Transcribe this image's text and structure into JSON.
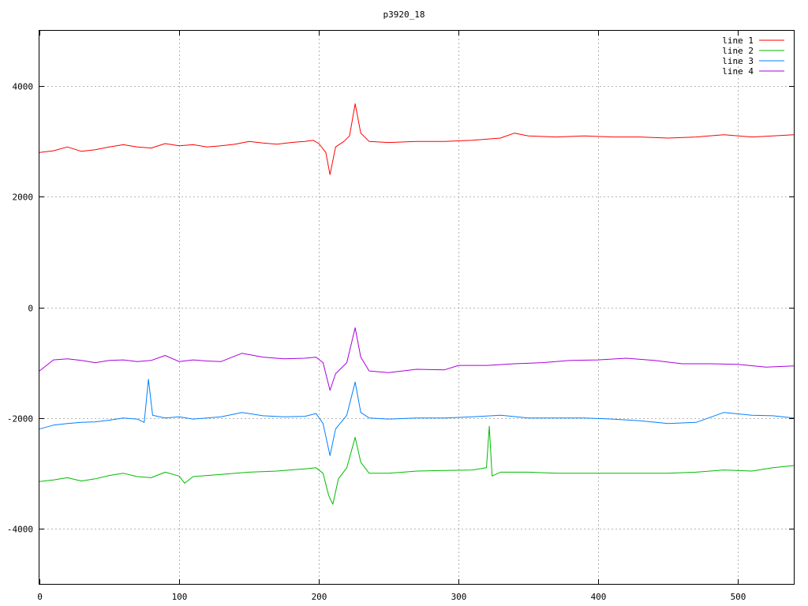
{
  "chart_data": {
    "type": "line",
    "title": "p3920_18",
    "xlabel": "",
    "ylabel": "",
    "xlim": [
      0,
      540
    ],
    "ylim": [
      -5000,
      5000
    ],
    "x_ticks": [
      0,
      100,
      200,
      300,
      400,
      500
    ],
    "y_ticks": [
      -4000,
      -2000,
      0,
      2000,
      4000
    ],
    "x_tick_labels": [
      "0",
      "100",
      "200",
      "300",
      "400",
      "500"
    ],
    "y_tick_labels": [
      "-4000",
      "-2000",
      "0",
      "2000",
      "4000"
    ],
    "grid": true,
    "legend_position": "top-right",
    "series": [
      {
        "name": "line 1",
        "color": "#ff0000",
        "points": [
          [
            0,
            2800
          ],
          [
            10,
            2830
          ],
          [
            20,
            2900
          ],
          [
            30,
            2820
          ],
          [
            40,
            2850
          ],
          [
            50,
            2900
          ],
          [
            60,
            2940
          ],
          [
            70,
            2900
          ],
          [
            80,
            2880
          ],
          [
            90,
            2960
          ],
          [
            100,
            2920
          ],
          [
            110,
            2940
          ],
          [
            120,
            2900
          ],
          [
            130,
            2920
          ],
          [
            140,
            2950
          ],
          [
            150,
            3000
          ],
          [
            160,
            2970
          ],
          [
            170,
            2950
          ],
          [
            180,
            2980
          ],
          [
            190,
            3000
          ],
          [
            196,
            3020
          ],
          [
            200,
            2960
          ],
          [
            205,
            2800
          ],
          [
            208,
            2400
          ],
          [
            212,
            2900
          ],
          [
            218,
            3000
          ],
          [
            222,
            3100
          ],
          [
            226,
            3680
          ],
          [
            230,
            3150
          ],
          [
            236,
            3000
          ],
          [
            250,
            2980
          ],
          [
            270,
            3000
          ],
          [
            290,
            3000
          ],
          [
            310,
            3020
          ],
          [
            330,
            3060
          ],
          [
            340,
            3150
          ],
          [
            350,
            3100
          ],
          [
            370,
            3080
          ],
          [
            390,
            3100
          ],
          [
            410,
            3080
          ],
          [
            430,
            3080
          ],
          [
            450,
            3060
          ],
          [
            470,
            3080
          ],
          [
            490,
            3120
          ],
          [
            510,
            3080
          ],
          [
            525,
            3100
          ],
          [
            540,
            3120
          ]
        ]
      },
      {
        "name": "line 2",
        "color": "#00bb00",
        "points": [
          [
            0,
            -3150
          ],
          [
            10,
            -3120
          ],
          [
            20,
            -3080
          ],
          [
            30,
            -3140
          ],
          [
            40,
            -3100
          ],
          [
            50,
            -3040
          ],
          [
            60,
            -3000
          ],
          [
            70,
            -3060
          ],
          [
            80,
            -3080
          ],
          [
            90,
            -2980
          ],
          [
            100,
            -3050
          ],
          [
            104,
            -3180
          ],
          [
            110,
            -3060
          ],
          [
            130,
            -3020
          ],
          [
            150,
            -2980
          ],
          [
            170,
            -2960
          ],
          [
            190,
            -2920
          ],
          [
            198,
            -2900
          ],
          [
            203,
            -3000
          ],
          [
            207,
            -3400
          ],
          [
            210,
            -3560
          ],
          [
            214,
            -3100
          ],
          [
            220,
            -2900
          ],
          [
            226,
            -2350
          ],
          [
            230,
            -2800
          ],
          [
            236,
            -3000
          ],
          [
            250,
            -3000
          ],
          [
            270,
            -2960
          ],
          [
            290,
            -2950
          ],
          [
            310,
            -2940
          ],
          [
            320,
            -2900
          ],
          [
            322,
            -2150
          ],
          [
            324,
            -3050
          ],
          [
            330,
            -2980
          ],
          [
            350,
            -2980
          ],
          [
            370,
            -3000
          ],
          [
            390,
            -3000
          ],
          [
            410,
            -3000
          ],
          [
            430,
            -3000
          ],
          [
            450,
            -3000
          ],
          [
            470,
            -2980
          ],
          [
            490,
            -2940
          ],
          [
            510,
            -2960
          ],
          [
            525,
            -2900
          ],
          [
            540,
            -2860
          ]
        ]
      },
      {
        "name": "line 3",
        "color": "#0080ff",
        "points": [
          [
            0,
            -2200
          ],
          [
            10,
            -2130
          ],
          [
            20,
            -2100
          ],
          [
            30,
            -2080
          ],
          [
            40,
            -2070
          ],
          [
            50,
            -2040
          ],
          [
            60,
            -2000
          ],
          [
            70,
            -2020
          ],
          [
            75,
            -2080
          ],
          [
            78,
            -1300
          ],
          [
            81,
            -1950
          ],
          [
            90,
            -2000
          ],
          [
            100,
            -1980
          ],
          [
            110,
            -2020
          ],
          [
            120,
            -2000
          ],
          [
            130,
            -1980
          ],
          [
            145,
            -1900
          ],
          [
            160,
            -1960
          ],
          [
            175,
            -1980
          ],
          [
            190,
            -1970
          ],
          [
            198,
            -1920
          ],
          [
            203,
            -2100
          ],
          [
            208,
            -2680
          ],
          [
            212,
            -2200
          ],
          [
            220,
            -1950
          ],
          [
            226,
            -1350
          ],
          [
            230,
            -1900
          ],
          [
            236,
            -2000
          ],
          [
            250,
            -2020
          ],
          [
            270,
            -2000
          ],
          [
            290,
            -2000
          ],
          [
            310,
            -1980
          ],
          [
            330,
            -1950
          ],
          [
            350,
            -2000
          ],
          [
            370,
            -2000
          ],
          [
            390,
            -2000
          ],
          [
            410,
            -2020
          ],
          [
            430,
            -2050
          ],
          [
            450,
            -2100
          ],
          [
            470,
            -2080
          ],
          [
            490,
            -1900
          ],
          [
            510,
            -1950
          ],
          [
            525,
            -1960
          ],
          [
            540,
            -2000
          ]
        ]
      },
      {
        "name": "line 4",
        "color": "#aa00dd",
        "points": [
          [
            0,
            -1150
          ],
          [
            10,
            -950
          ],
          [
            20,
            -930
          ],
          [
            30,
            -960
          ],
          [
            40,
            -1000
          ],
          [
            50,
            -960
          ],
          [
            60,
            -950
          ],
          [
            70,
            -980
          ],
          [
            80,
            -960
          ],
          [
            90,
            -870
          ],
          [
            100,
            -980
          ],
          [
            110,
            -950
          ],
          [
            120,
            -970
          ],
          [
            130,
            -980
          ],
          [
            145,
            -830
          ],
          [
            160,
            -900
          ],
          [
            175,
            -930
          ],
          [
            190,
            -920
          ],
          [
            198,
            -900
          ],
          [
            203,
            -1000
          ],
          [
            208,
            -1500
          ],
          [
            212,
            -1200
          ],
          [
            220,
            -1000
          ],
          [
            226,
            -370
          ],
          [
            230,
            -900
          ],
          [
            236,
            -1150
          ],
          [
            250,
            -1180
          ],
          [
            270,
            -1120
          ],
          [
            290,
            -1130
          ],
          [
            300,
            -1050
          ],
          [
            320,
            -1050
          ],
          [
            340,
            -1020
          ],
          [
            360,
            -1000
          ],
          [
            380,
            -960
          ],
          [
            400,
            -950
          ],
          [
            420,
            -920
          ],
          [
            440,
            -960
          ],
          [
            460,
            -1020
          ],
          [
            480,
            -1020
          ],
          [
            500,
            -1030
          ],
          [
            520,
            -1080
          ],
          [
            540,
            -1060
          ]
        ]
      }
    ]
  }
}
